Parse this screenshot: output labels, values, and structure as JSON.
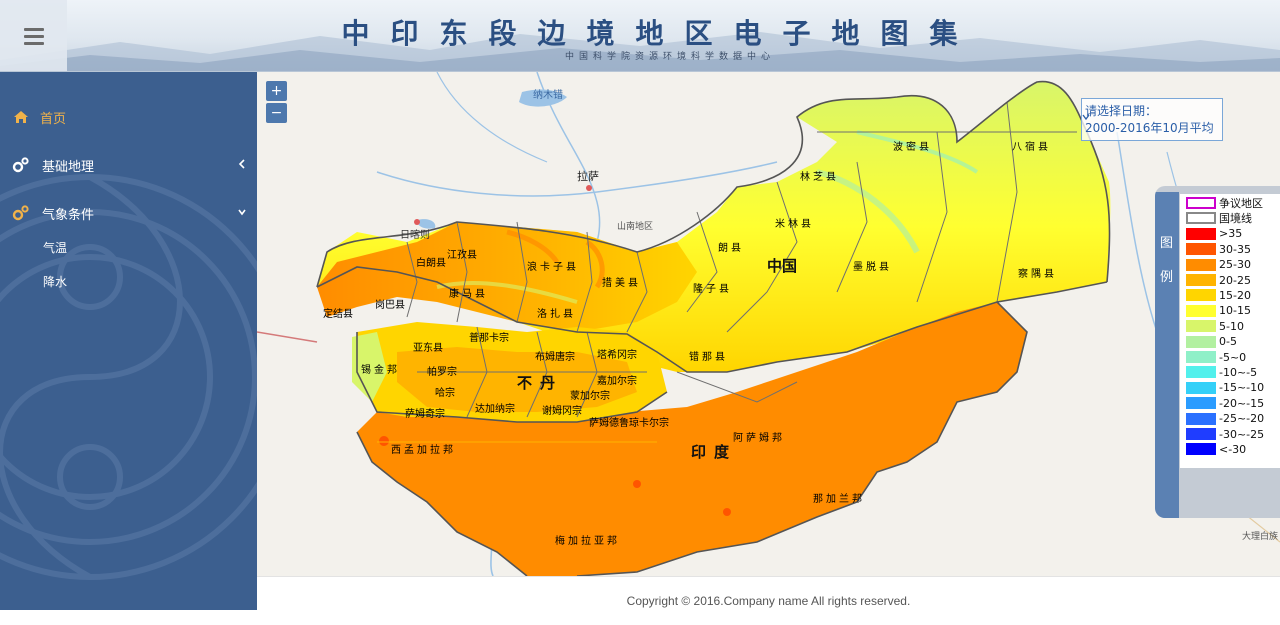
{
  "header": {
    "title": "中印东段边境地区电子地图集",
    "subtitle": "中国科学院资源环境科学数据中心"
  },
  "sidebar": {
    "items": [
      {
        "label": "首页",
        "icon": "home-icon"
      },
      {
        "label": "基础地理",
        "icon": "gears-icon"
      },
      {
        "label": "气象条件",
        "icon": "gears-icon"
      }
    ],
    "subitems": [
      {
        "label": "气温"
      },
      {
        "label": "降水"
      }
    ]
  },
  "map": {
    "zoom_in": "+",
    "zoom_out": "−",
    "date_select": {
      "line1": "请选择日期：",
      "line2": "2000-2016年10月平均"
    },
    "base_labels": {
      "namucuo": "纳木错",
      "lasa": "拉萨",
      "shannan": "山南地区",
      "rikaze": "日喀则",
      "dali": "大理白族"
    },
    "region_labels": {
      "china": "中国",
      "bhutan": "不丹",
      "india": "印度"
    },
    "county_labels": [
      "波密县",
      "八宿县",
      "林芝县",
      "米林县",
      "朗县",
      "墨脱县",
      "察隅县",
      "隆子县",
      "措美县",
      "浪卡子县",
      "江孜县",
      "白朗县",
      "康马县",
      "洛扎县",
      "错那县",
      "岗巴县",
      "定结县",
      "亚东县",
      "锡金邦",
      "阿萨姆邦",
      "西孟加拉邦",
      "梅加拉亚邦",
      "那加兰邦",
      "普那卡宗",
      "布姆唐宗",
      "帕罗宗",
      "哈宗",
      "萨姆奇宗",
      "嘉加尔宗",
      "蒙加尔宗",
      "达加纳宗",
      "谢姆冈宗",
      "萨姆德鲁琼卡尔宗",
      "塔希冈宗"
    ]
  },
  "legend": {
    "tab_chars": [
      "图",
      "例"
    ],
    "items": [
      {
        "label": "争议地区",
        "color": "#ffffff",
        "border": "#cc00cc"
      },
      {
        "label": "国境线",
        "color": "#ffffff",
        "border": "#888888"
      },
      {
        "label": ">35",
        "color": "#ff0000"
      },
      {
        "label": "30-35",
        "color": "#ff5500"
      },
      {
        "label": "25-30",
        "color": "#ff8c00"
      },
      {
        "label": "20-25",
        "color": "#ffb400"
      },
      {
        "label": "15-20",
        "color": "#ffd500"
      },
      {
        "label": "10-15",
        "color": "#ffff30"
      },
      {
        "label": "5-10",
        "color": "#d8f56a"
      },
      {
        "label": "0-5",
        "color": "#b2f0a0"
      },
      {
        "label": "-5~0",
        "color": "#8ff0c8"
      },
      {
        "label": "-10~-5",
        "color": "#52f0ec"
      },
      {
        "label": "-15~-10",
        "color": "#34d0f8"
      },
      {
        "label": "-20~-15",
        "color": "#2b9cff"
      },
      {
        "label": "-25~-20",
        "color": "#2a70ff"
      },
      {
        "label": "-30~-25",
        "color": "#1f3dff"
      },
      {
        "label": "<-30",
        "color": "#0000ff"
      }
    ]
  },
  "footer": {
    "copyright": "Copyright © 2016.Company name All rights reserved."
  }
}
